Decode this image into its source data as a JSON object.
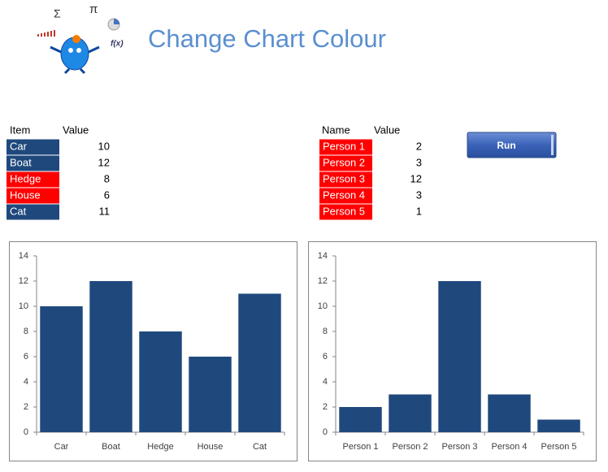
{
  "header": {
    "title": "Change Chart Colour",
    "logo_symbols": [
      "Σ",
      "π",
      "f(x)"
    ]
  },
  "table1": {
    "headers": [
      "Item",
      "Value"
    ],
    "rows": [
      [
        "Car",
        10
      ],
      [
        "Boat",
        12
      ],
      [
        "Hedge",
        8
      ],
      [
        "House",
        6
      ],
      [
        "Cat",
        11
      ]
    ],
    "colors": [
      "#1f497d",
      "#1f497d",
      "#ff0000",
      "#ff0000",
      "#1f497d"
    ]
  },
  "table2": {
    "headers": [
      "Name",
      "Value"
    ],
    "rows": [
      [
        "Person 1",
        2
      ],
      [
        "Person 2",
        3
      ],
      [
        "Person 3",
        12
      ],
      [
        "Person 4",
        3
      ],
      [
        "Person 5",
        1
      ]
    ],
    "colors": [
      "#ff0000",
      "#ff0000",
      "#ff0000",
      "#ff0000",
      "#ff0000"
    ]
  },
  "button": {
    "label": "Run"
  },
  "chart_data": [
    {
      "type": "bar",
      "categories": [
        "Car",
        "Boat",
        "Hedge",
        "House",
        "Cat"
      ],
      "values": [
        10,
        12,
        8,
        6,
        11
      ],
      "color": "#1f497d",
      "ylim": [
        0,
        14
      ],
      "yticks": [
        0,
        2,
        4,
        6,
        8,
        10,
        12,
        14
      ],
      "grid": false
    },
    {
      "type": "bar",
      "categories": [
        "Person 1",
        "Person 2",
        "Person 3",
        "Person 4",
        "Person 5"
      ],
      "values": [
        2,
        3,
        12,
        3,
        1
      ],
      "color": "#1f497d",
      "ylim": [
        0,
        14
      ],
      "yticks": [
        0,
        2,
        4,
        6,
        8,
        10,
        12,
        14
      ],
      "grid": false
    }
  ]
}
